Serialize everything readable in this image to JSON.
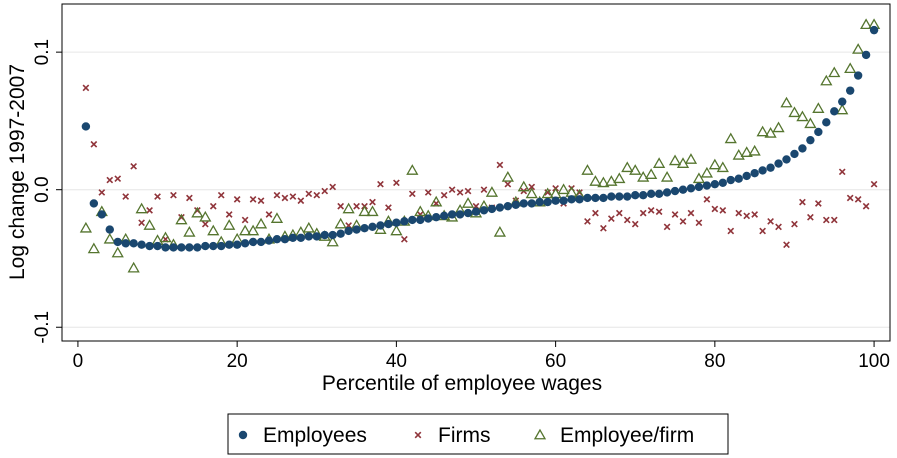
{
  "chart_data": {
    "type": "scatter",
    "title": "",
    "xlabel": "Percentile of employee wages",
    "ylabel": "Log change 1997-2007",
    "xlim": [
      -2,
      102
    ],
    "ylim": [
      -0.11,
      0.135
    ],
    "x_ticks": [
      0,
      20,
      40,
      60,
      80,
      100
    ],
    "x_tick_labels": [
      "0",
      "20",
      "40",
      "60",
      "80",
      "100"
    ],
    "y_ticks": [
      -0.1,
      0.0,
      0.1
    ],
    "y_tick_labels": [
      "-0.1",
      "0.0",
      "0.1"
    ],
    "grid": "horizontal",
    "legend_position": "bottom",
    "series": [
      {
        "name": "Employees",
        "marker": "circle",
        "color": "#1a476f",
        "x": [
          1,
          2,
          3,
          4,
          5,
          6,
          7,
          8,
          9,
          10,
          11,
          12,
          13,
          14,
          15,
          16,
          17,
          18,
          19,
          20,
          21,
          22,
          23,
          24,
          25,
          26,
          27,
          28,
          29,
          30,
          31,
          32,
          33,
          34,
          35,
          36,
          37,
          38,
          39,
          40,
          41,
          42,
          43,
          44,
          45,
          46,
          47,
          48,
          49,
          50,
          51,
          52,
          53,
          54,
          55,
          56,
          57,
          58,
          59,
          60,
          61,
          62,
          63,
          64,
          65,
          66,
          67,
          68,
          69,
          70,
          71,
          72,
          73,
          74,
          75,
          76,
          77,
          78,
          79,
          80,
          81,
          82,
          83,
          84,
          85,
          86,
          87,
          88,
          89,
          90,
          91,
          92,
          93,
          94,
          95,
          96,
          97,
          98,
          99,
          100
        ],
        "y": [
          0.046,
          -0.01,
          -0.018,
          -0.029,
          -0.038,
          -0.039,
          -0.039,
          -0.04,
          -0.041,
          -0.041,
          -0.042,
          -0.042,
          -0.042,
          -0.042,
          -0.042,
          -0.041,
          -0.041,
          -0.041,
          -0.04,
          -0.04,
          -0.039,
          -0.038,
          -0.038,
          -0.037,
          -0.036,
          -0.036,
          -0.035,
          -0.035,
          -0.034,
          -0.034,
          -0.033,
          -0.033,
          -0.032,
          -0.03,
          -0.029,
          -0.028,
          -0.027,
          -0.026,
          -0.025,
          -0.024,
          -0.023,
          -0.022,
          -0.022,
          -0.021,
          -0.02,
          -0.019,
          -0.018,
          -0.018,
          -0.017,
          -0.016,
          -0.015,
          -0.014,
          -0.013,
          -0.012,
          -0.011,
          -0.01,
          -0.01,
          -0.009,
          -0.009,
          -0.008,
          -0.008,
          -0.007,
          -0.007,
          -0.006,
          -0.006,
          -0.006,
          -0.005,
          -0.005,
          -0.005,
          -0.004,
          -0.004,
          -0.003,
          -0.003,
          -0.002,
          -0.001,
          0.0,
          0.001,
          0.002,
          0.003,
          0.004,
          0.005,
          0.007,
          0.008,
          0.01,
          0.012,
          0.014,
          0.016,
          0.019,
          0.022,
          0.026,
          0.03,
          0.036,
          0.042,
          0.049,
          0.057,
          0.064,
          0.072,
          0.083,
          0.098,
          0.116
        ]
      },
      {
        "name": "Firms",
        "marker": "x",
        "color": "#90353b",
        "x": [
          1,
          2,
          3,
          4,
          5,
          6,
          7,
          8,
          9,
          10,
          11,
          12,
          13,
          14,
          15,
          16,
          17,
          18,
          19,
          20,
          21,
          22,
          23,
          24,
          25,
          26,
          27,
          28,
          29,
          30,
          31,
          32,
          33,
          34,
          35,
          36,
          37,
          38,
          39,
          40,
          41,
          42,
          43,
          44,
          45,
          46,
          47,
          48,
          49,
          50,
          51,
          52,
          53,
          54,
          55,
          56,
          57,
          58,
          59,
          60,
          61,
          62,
          63,
          64,
          65,
          66,
          67,
          68,
          69,
          70,
          71,
          72,
          73,
          74,
          75,
          76,
          77,
          78,
          79,
          80,
          81,
          82,
          83,
          84,
          85,
          86,
          87,
          88,
          89,
          90,
          91,
          92,
          93,
          94,
          95,
          96,
          97,
          98,
          99,
          100
        ],
        "y": [
          0.074,
          0.033,
          -0.002,
          0.007,
          0.008,
          -0.005,
          0.017,
          -0.024,
          -0.015,
          -0.005,
          -0.036,
          -0.004,
          -0.02,
          -0.006,
          -0.015,
          -0.025,
          -0.012,
          -0.004,
          -0.018,
          -0.007,
          -0.022,
          -0.007,
          -0.008,
          -0.018,
          -0.004,
          -0.006,
          -0.005,
          -0.008,
          -0.003,
          -0.004,
          -0.001,
          0.002,
          -0.012,
          -0.026,
          -0.012,
          -0.012,
          -0.009,
          0.004,
          -0.013,
          0.005,
          -0.036,
          -0.003,
          -0.018,
          -0.002,
          -0.01,
          -0.004,
          0.0,
          -0.002,
          -0.001,
          -0.012,
          0.0,
          -0.013,
          0.018,
          0.004,
          -0.008,
          -0.001,
          0.002,
          -0.009,
          -0.002,
          0.001,
          -0.01,
          0.001,
          -0.002,
          -0.023,
          -0.017,
          -0.028,
          -0.021,
          -0.017,
          -0.022,
          -0.025,
          -0.017,
          -0.015,
          -0.016,
          -0.027,
          -0.018,
          -0.023,
          -0.017,
          -0.024,
          -0.007,
          -0.014,
          -0.015,
          -0.03,
          -0.017,
          -0.019,
          -0.018,
          -0.03,
          -0.023,
          -0.027,
          -0.04,
          -0.025,
          -0.009,
          -0.02,
          -0.01,
          -0.022,
          -0.022,
          0.013,
          -0.006,
          -0.007,
          -0.012,
          0.004
        ]
      },
      {
        "name": "Employee/firm",
        "marker": "triangle",
        "color": "#55752f",
        "x": [
          1,
          2,
          3,
          4,
          5,
          6,
          7,
          8,
          9,
          10,
          11,
          12,
          13,
          14,
          15,
          16,
          17,
          18,
          19,
          20,
          21,
          22,
          23,
          24,
          25,
          26,
          27,
          28,
          29,
          30,
          31,
          32,
          33,
          34,
          35,
          36,
          37,
          38,
          39,
          40,
          41,
          42,
          43,
          44,
          45,
          46,
          47,
          48,
          49,
          50,
          51,
          52,
          53,
          54,
          55,
          56,
          57,
          58,
          59,
          60,
          61,
          62,
          63,
          64,
          65,
          66,
          67,
          68,
          69,
          70,
          71,
          72,
          73,
          74,
          75,
          76,
          77,
          78,
          79,
          80,
          81,
          82,
          83,
          84,
          85,
          86,
          87,
          88,
          89,
          90,
          91,
          92,
          93,
          94,
          95,
          96,
          97,
          98,
          99,
          100
        ],
        "y": [
          -0.028,
          -0.043,
          -0.016,
          -0.036,
          -0.046,
          -0.036,
          -0.057,
          -0.014,
          -0.026,
          -0.037,
          -0.035,
          -0.04,
          -0.022,
          -0.031,
          -0.017,
          -0.02,
          -0.03,
          -0.038,
          -0.026,
          -0.036,
          -0.03,
          -0.03,
          -0.025,
          -0.036,
          -0.021,
          -0.034,
          -0.033,
          -0.031,
          -0.028,
          -0.032,
          -0.034,
          -0.038,
          -0.025,
          -0.014,
          -0.026,
          -0.016,
          -0.016,
          -0.029,
          -0.023,
          -0.03,
          -0.023,
          0.014,
          -0.016,
          -0.019,
          -0.009,
          -0.019,
          -0.02,
          -0.015,
          -0.01,
          -0.017,
          -0.012,
          -0.002,
          -0.031,
          0.009,
          -0.009,
          0.002,
          -0.003,
          -0.009,
          -0.003,
          -0.003,
          0.0,
          -0.002,
          -0.004,
          0.014,
          0.006,
          0.005,
          0.006,
          0.008,
          0.016,
          0.014,
          0.009,
          0.011,
          0.019,
          0.009,
          0.021,
          0.019,
          0.022,
          0.008,
          0.012,
          0.018,
          0.016,
          0.037,
          0.025,
          0.027,
          0.028,
          0.042,
          0.041,
          0.045,
          0.063,
          0.056,
          0.053,
          0.048,
          0.059,
          0.079,
          0.085,
          0.058,
          0.088,
          0.102,
          0.12,
          0.12
        ]
      }
    ]
  }
}
